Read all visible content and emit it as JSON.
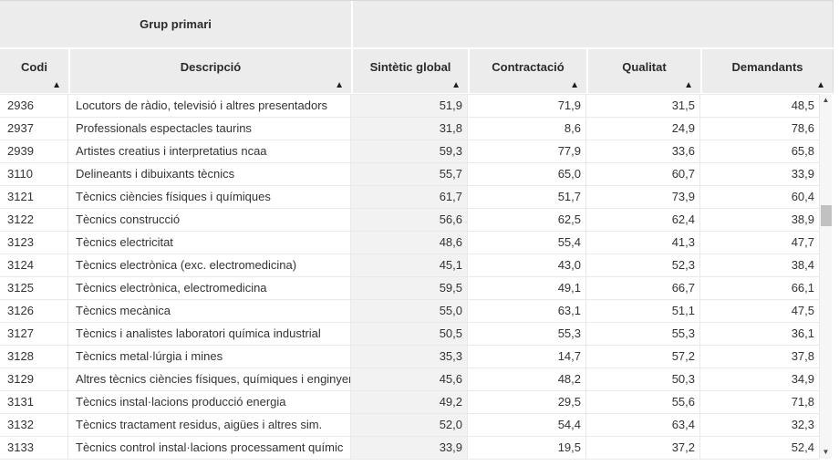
{
  "table": {
    "group_header": "Grup primari",
    "columns": [
      {
        "id": "codi",
        "label": "Codi"
      },
      {
        "id": "descripcio",
        "label": "Descripció"
      },
      {
        "id": "sintetic",
        "label": "Sintètic global"
      },
      {
        "id": "contractacio",
        "label": "Contractació"
      },
      {
        "id": "qualitat",
        "label": "Qualitat"
      },
      {
        "id": "demandants",
        "label": "Demandants"
      }
    ],
    "rows": [
      {
        "codi": "2936",
        "descripcio": "Locutors de ràdio, televisió i altres presentadors",
        "sintetic": "51,9",
        "contractacio": "71,9",
        "qualitat": "31,5",
        "demandants": "48,5"
      },
      {
        "codi": "2937",
        "descripcio": "Professionals espectacles taurins",
        "sintetic": "31,8",
        "contractacio": "8,6",
        "qualitat": "24,9",
        "demandants": "78,6"
      },
      {
        "codi": "2939",
        "descripcio": "Artistes creatius i interpretatius ncaa",
        "sintetic": "59,3",
        "contractacio": "77,9",
        "qualitat": "33,6",
        "demandants": "65,8"
      },
      {
        "codi": "3110",
        "descripcio": "Delineants i dibuixants tècnics",
        "sintetic": "55,7",
        "contractacio": "65,0",
        "qualitat": "60,7",
        "demandants": "33,9"
      },
      {
        "codi": "3121",
        "descripcio": "Tècnics ciències físiques i químiques",
        "sintetic": "61,7",
        "contractacio": "51,7",
        "qualitat": "73,9",
        "demandants": "60,4"
      },
      {
        "codi": "3122",
        "descripcio": "Tècnics construcció",
        "sintetic": "56,6",
        "contractacio": "62,5",
        "qualitat": "62,4",
        "demandants": "38,9"
      },
      {
        "codi": "3123",
        "descripcio": "Tècnics electricitat",
        "sintetic": "48,6",
        "contractacio": "55,4",
        "qualitat": "41,3",
        "demandants": "47,7"
      },
      {
        "codi": "3124",
        "descripcio": "Tècnics electrònica (exc. electromedicina)",
        "sintetic": "45,1",
        "contractacio": "43,0",
        "qualitat": "52,3",
        "demandants": "38,4"
      },
      {
        "codi": "3125",
        "descripcio": "Tècnics electrònica, electromedicina",
        "sintetic": "59,5",
        "contractacio": "49,1",
        "qualitat": "66,7",
        "demandants": "66,1"
      },
      {
        "codi": "3126",
        "descripcio": "Tècnics mecànica",
        "sintetic": "55,0",
        "contractacio": "63,1",
        "qualitat": "51,1",
        "demandants": "47,5"
      },
      {
        "codi": "3127",
        "descripcio": "Tècnics i analistes laboratori química industrial",
        "sintetic": "50,5",
        "contractacio": "55,3",
        "qualitat": "55,3",
        "demandants": "36,1"
      },
      {
        "codi": "3128",
        "descripcio": "Tècnics metal·lúrgia i mines",
        "sintetic": "35,3",
        "contractacio": "14,7",
        "qualitat": "57,2",
        "demandants": "37,8"
      },
      {
        "codi": "3129",
        "descripcio": "Altres tècnics ciències físiques, químiques i enginyeria",
        "sintetic": "45,6",
        "contractacio": "48,2",
        "qualitat": "50,3",
        "demandants": "34,9"
      },
      {
        "codi": "3131",
        "descripcio": "Tècnics instal·lacions producció energia",
        "sintetic": "49,2",
        "contractacio": "29,5",
        "qualitat": "55,6",
        "demandants": "71,8"
      },
      {
        "codi": "3132",
        "descripcio": "Tècnics tractament residus, aigües i altres sim.",
        "sintetic": "52,0",
        "contractacio": "54,4",
        "qualitat": "63,4",
        "demandants": "32,3"
      },
      {
        "codi": "3133",
        "descripcio": "Tècnics control instal·lacions processament químic",
        "sintetic": "33,9",
        "contractacio": "19,5",
        "qualitat": "37,2",
        "demandants": "52,4"
      }
    ]
  },
  "icons": {
    "sort_asc": "▲",
    "scroll_up": "▲",
    "scroll_down": "▼"
  },
  "colors": {
    "header-bg": "#ececec",
    "shaded-col-bg": "#f2f2f2",
    "row-border": "#e9e9e9",
    "text": "#333333",
    "sort-arrow": "#1c1c1c",
    "scrollbar-track": "#f6f6f6",
    "scrollbar-thumb": "#c1c1c1"
  }
}
